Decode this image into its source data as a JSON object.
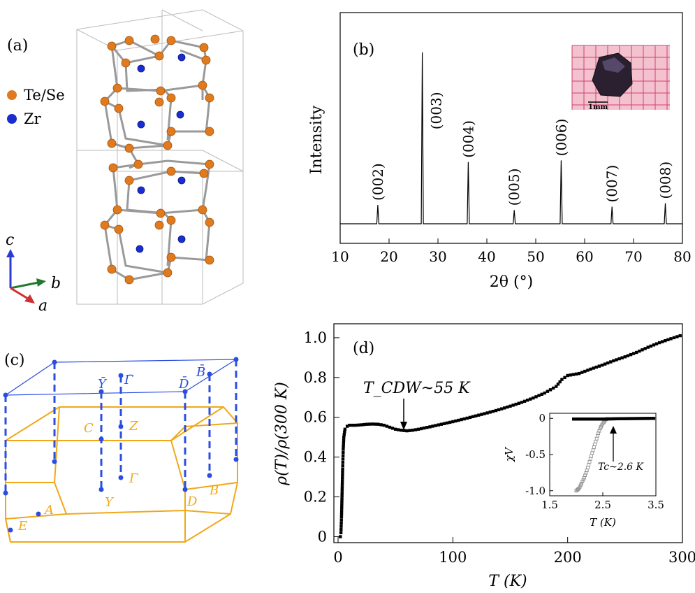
{
  "panels": {
    "a": {
      "label": "(a)",
      "legend": [
        {
          "text": "Te/Se",
          "color": "#e07a1f"
        },
        {
          "text": "Zr",
          "color": "#1a2ecf"
        }
      ],
      "axes": {
        "c": "c",
        "b": "b",
        "a": "a",
        "c_color": "#2b3bd0",
        "b_color": "#1f7a2e",
        "a_color": "#d03030"
      }
    },
    "c": {
      "label": "(c)",
      "surface_points": [
        "Ȳ",
        "Γ̄",
        "D̄",
        "B̄"
      ],
      "bulk_points": [
        "C",
        "Z",
        "Γ",
        "Y",
        "D",
        "B",
        "A",
        "E"
      ],
      "surface_color": "#2b4de0",
      "bulk_color": "#f0a818"
    }
  },
  "chart_data": [
    {
      "id": "b",
      "type": "line",
      "panel_label": "(b)",
      "xlabel": "2θ (°)",
      "ylabel": "Intensity",
      "xlim": [
        10,
        80
      ],
      "xticks": [
        "10",
        "20",
        "30",
        "40",
        "50",
        "60",
        "70",
        "80"
      ],
      "peaks": [
        {
          "x": 17.7,
          "y": 0.11,
          "label": "(002)"
        },
        {
          "x": 26.8,
          "y": 1.0,
          "label": "(003)"
        },
        {
          "x": 36.2,
          "y": 0.36,
          "label": "(004)"
        },
        {
          "x": 45.6,
          "y": 0.08,
          "label": "(005)"
        },
        {
          "x": 55.2,
          "y": 0.37,
          "label": "(006)"
        },
        {
          "x": 65.6,
          "y": 0.1,
          "label": "(007)"
        },
        {
          "x": 76.5,
          "y": 0.12,
          "label": "(008)"
        }
      ],
      "inset": {
        "scale_label": "1mm"
      }
    },
    {
      "id": "d",
      "type": "scatter",
      "panel_label": "(d)",
      "xlabel": "T (K)",
      "ylabel": "ρ(T)/ρ(300 K)",
      "xlim": [
        0,
        300
      ],
      "ylim": [
        -0.03,
        1.07
      ],
      "xticks": [
        "0",
        "100",
        "200",
        "300"
      ],
      "yticks": [
        "0",
        "0.2",
        "0.4",
        "0.6",
        "0.8",
        "1.0"
      ],
      "annotation": {
        "text": "T_CDW~55 K",
        "x": 60,
        "y": 0.535
      },
      "points": [
        [
          2,
          0
        ],
        [
          2.5,
          0.02
        ],
        [
          3,
          0.1
        ],
        [
          3.5,
          0.22
        ],
        [
          4,
          0.34
        ],
        [
          4.5,
          0.44
        ],
        [
          5,
          0.5
        ],
        [
          6,
          0.54
        ],
        [
          8,
          0.555
        ],
        [
          10,
          0.56
        ],
        [
          15,
          0.56
        ],
        [
          20,
          0.562
        ],
        [
          25,
          0.565
        ],
        [
          30,
          0.566
        ],
        [
          35,
          0.565
        ],
        [
          40,
          0.56
        ],
        [
          45,
          0.55
        ],
        [
          50,
          0.54
        ],
        [
          55,
          0.535
        ],
        [
          60,
          0.532
        ],
        [
          65,
          0.535
        ],
        [
          70,
          0.54
        ],
        [
          80,
          0.552
        ],
        [
          90,
          0.565
        ],
        [
          100,
          0.578
        ],
        [
          110,
          0.592
        ],
        [
          120,
          0.607
        ],
        [
          130,
          0.622
        ],
        [
          140,
          0.638
        ],
        [
          150,
          0.656
        ],
        [
          160,
          0.675
        ],
        [
          170,
          0.697
        ],
        [
          180,
          0.722
        ],
        [
          190,
          0.755
        ],
        [
          195,
          0.79
        ],
        [
          200,
          0.81
        ],
        [
          205,
          0.815
        ],
        [
          210,
          0.82
        ],
        [
          220,
          0.842
        ],
        [
          230,
          0.862
        ],
        [
          240,
          0.884
        ],
        [
          250,
          0.904
        ],
        [
          260,
          0.926
        ],
        [
          270,
          0.952
        ],
        [
          280,
          0.975
        ],
        [
          290,
          0.995
        ],
        [
          298,
          1.01
        ]
      ],
      "inset": {
        "xlabel": "T (K)",
        "ylabel": "χV",
        "xlim": [
          1.5,
          3.5
        ],
        "ylim": [
          -1.07,
          0.07
        ],
        "xticks": [
          "1.5",
          "2.5",
          "3.5"
        ],
        "yticks": [
          "0",
          "-0.5",
          "-1.0"
        ],
        "annotation": "Tc~2.6 K",
        "zfc": [
          [
            2.0,
            -1.0
          ],
          [
            2.05,
            -0.97
          ],
          [
            2.1,
            -0.9
          ],
          [
            2.15,
            -0.82
          ],
          [
            2.2,
            -0.72
          ],
          [
            2.25,
            -0.6
          ],
          [
            2.3,
            -0.48
          ],
          [
            2.35,
            -0.36
          ],
          [
            2.4,
            -0.24
          ],
          [
            2.45,
            -0.14
          ],
          [
            2.5,
            -0.07
          ],
          [
            2.55,
            -0.02
          ],
          [
            2.6,
            0
          ]
        ],
        "fc": [
          [
            1.95,
            -0.01
          ],
          [
            2.2,
            -0.01
          ],
          [
            2.5,
            -0.01
          ],
          [
            2.8,
            -0.005
          ],
          [
            3.1,
            -0.003
          ],
          [
            3.5,
            0
          ]
        ]
      }
    }
  ]
}
